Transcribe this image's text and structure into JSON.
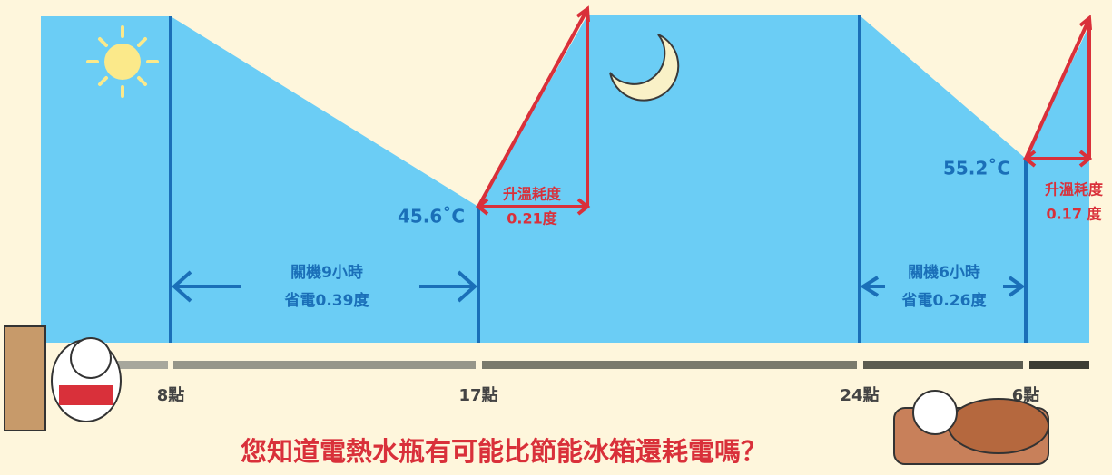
{
  "header": {
    "title": "您知道電熱水瓶有可能比節能冰箱還耗電嗎？"
  },
  "temperatures": [
    "45.6˚C",
    "55.2˚C"
  ],
  "heating": [
    {
      "label": "升溫耗度",
      "amount": "0.21度"
    },
    {
      "label": "升溫耗度",
      "amount": "0.17 度"
    }
  ],
  "off_periods": [
    {
      "duration": "關機9小時",
      "saving": "省電0.39度"
    },
    {
      "duration": "關機6小時",
      "saving": "省電0.26度"
    }
  ],
  "times": [
    "8點",
    "17點",
    "24點",
    "6點"
  ]
}
